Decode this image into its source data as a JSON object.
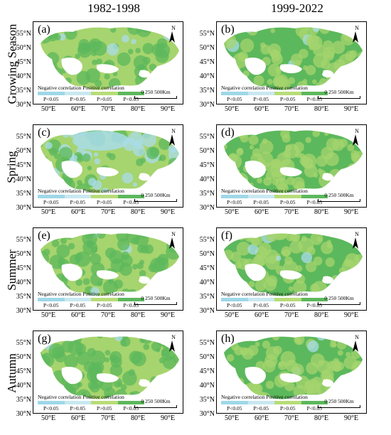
{
  "columns": [
    "1982-1998",
    "1999-2022"
  ],
  "rows": [
    "Growing Season",
    "Spring",
    "Summer",
    "Autumn"
  ],
  "panels": [
    {
      "label": "(a)"
    },
    {
      "label": "(b)"
    },
    {
      "label": "(c)"
    },
    {
      "label": "(d)"
    },
    {
      "label": "(e)"
    },
    {
      "label": "(f)"
    },
    {
      "label": "(g)"
    },
    {
      "label": "(h)"
    }
  ],
  "axes": {
    "lat_ticks": [
      "55°N",
      "50°N",
      "45°N",
      "40°N",
      "35°N",
      "30°N"
    ],
    "lon_ticks": [
      "50°E",
      "60°E",
      "70°E",
      "80°E",
      "90°E"
    ]
  },
  "north_arrow": {
    "label": "N",
    "icon": "north-arrow-icon"
  },
  "legend": {
    "negative": "Negative correlation",
    "positive": "Positive correlation",
    "classes": [
      "P<0.05",
      "P>0.05",
      "P>0.05",
      "P<0.05"
    ],
    "colors": [
      "#9ed8e8",
      "#c8e8f0",
      "#b8dc78",
      "#5cb85c"
    ]
  },
  "scale_bar": {
    "text": "0 250 500Km"
  },
  "map_colors": {
    "dark_green": "#5cb85c",
    "light_green": "#a6d46e",
    "light_blue": "#a9dcea",
    "background": "#ffffff"
  }
}
